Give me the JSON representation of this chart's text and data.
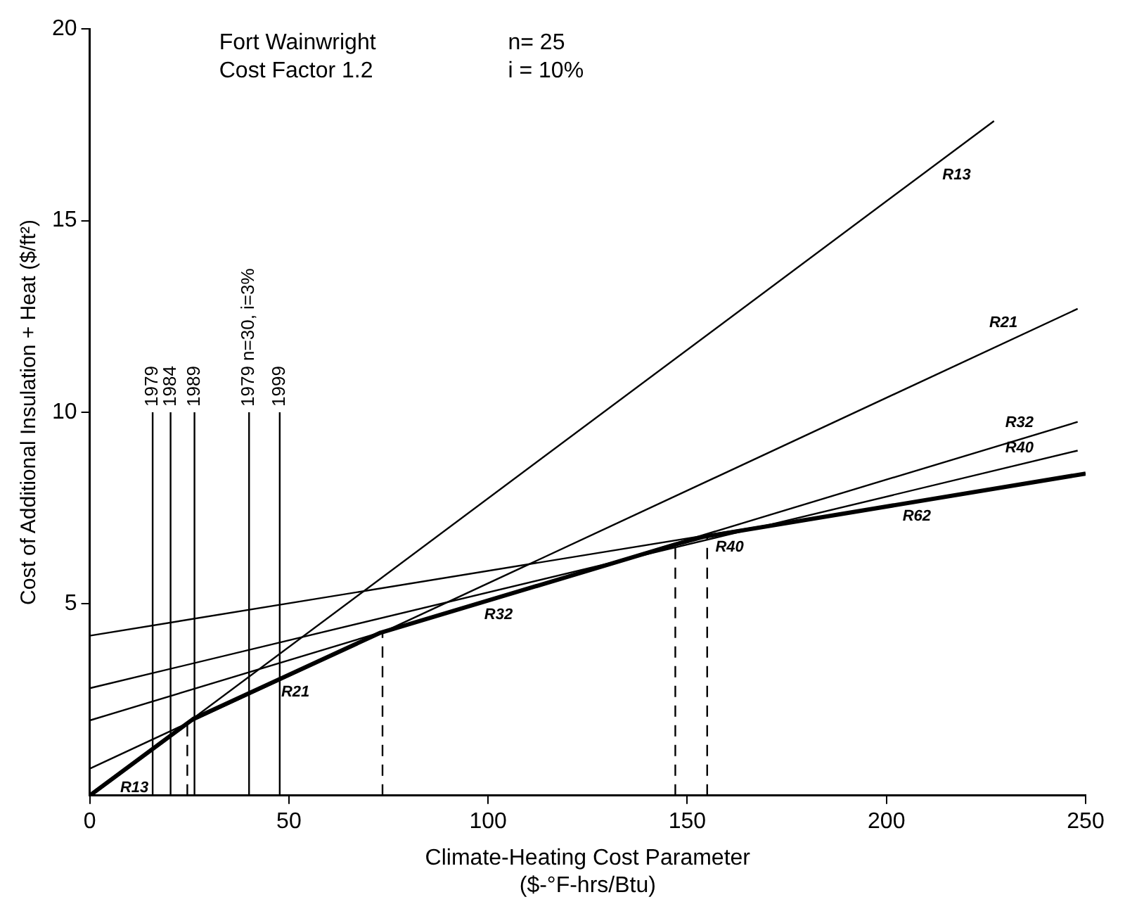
{
  "chart_data": {
    "type": "line",
    "xlabel": "Climate-Heating Cost Parameter\n($-°F-hrs/Btu)",
    "ylabel": "Cost of Additional Insulation + Heat ($/ft²)",
    "xlim": [
      0,
      250
    ],
    "xticks": [
      0,
      50,
      100,
      150,
      200,
      250
    ],
    "ylim": [
      0,
      20
    ],
    "yticks": [
      5,
      10,
      15,
      20
    ],
    "grid": false,
    "legend": false,
    "marker": "none",
    "series": [
      {
        "color": "#000000",
        "x": [
          0,
          227
        ],
        "values": [
          0,
          17.6
        ]
      },
      {
        "color": "#000000",
        "x": [
          0,
          248
        ],
        "values": [
          0.7,
          12.7
        ]
      },
      {
        "color": "#000000",
        "x": [
          0,
          248
        ],
        "values": [
          1.96,
          9.75
        ]
      },
      {
        "color": "#000000",
        "x": [
          0,
          248
        ],
        "values": [
          2.8,
          9.0
        ]
      },
      {
        "color": "#000000",
        "x": [
          0,
          250
        ],
        "values": [
          4.17,
          8.4
        ]
      },
      {
        "color": "#000000",
        "x": [
          0,
          26,
          73,
          147,
          154,
          250
        ],
        "values": [
          0,
          2,
          4.25,
          6.55,
          6.75,
          8.4
        ]
      },
      {
        "name": "1979",
        "color": "#000000",
        "x": [
          15.8,
          15.8
        ],
        "values": [
          0,
          10
        ]
      },
      {
        "name": "1984",
        "color": "#000000",
        "x": [
          20.3,
          20.3
        ],
        "values": [
          0,
          10
        ]
      },
      {
        "name": "1989",
        "color": "#000000",
        "x": [
          26.3,
          26.3
        ],
        "values": [
          0,
          10
        ]
      },
      {
        "name": "1979 n=30, i=3%",
        "color": "#000000",
        "x": [
          40,
          40
        ],
        "values": [
          0,
          10
        ]
      },
      {
        "name": "1999",
        "color": "#000000",
        "x": [
          47.7,
          47.7
        ],
        "values": [
          0,
          10
        ]
      },
      {
        "color": "#000000",
        "line_style": "dashed",
        "x": [
          24.5,
          24.5
        ],
        "values": [
          0,
          1.95
        ]
      },
      {
        "color": "#000000",
        "line_style": "dashed",
        "x": [
          73.5,
          73.5
        ],
        "values": [
          0,
          4.27
        ]
      },
      {
        "color": "#000000",
        "line_style": "dashed",
        "x": [
          147,
          147
        ],
        "values": [
          0,
          6.6
        ]
      },
      {
        "color": "#000000",
        "line_style": "dashed",
        "x": [
          155,
          155
        ],
        "values": [
          0,
          6.8
        ]
      }
    ],
    "annotations": [
      "Fort Wainwright",
      "n= 25",
      "Cost Factor 1.2",
      "i = 10%",
      {
        "text": "R13",
        "x": 6.6,
        "y": 0.51
      },
      {
        "text": "R21",
        "x": 47,
        "y": 3.0
      },
      {
        "text": "R32",
        "x": 98,
        "y": 5.03
      },
      {
        "text": "R40",
        "x": 156,
        "y": 6.78
      },
      {
        "text": "R62",
        "x": 203,
        "y": 7.59
      },
      {
        "text": "R13",
        "x": 213,
        "y": 16.5
      },
      {
        "text": "R21",
        "x": 234,
        "y": 12.02
      },
      {
        "text": "R32",
        "x": 238,
        "y": 9.41
      },
      {
        "text": "R40",
        "x": 238,
        "y": 8.75
      }
    ]
  }
}
